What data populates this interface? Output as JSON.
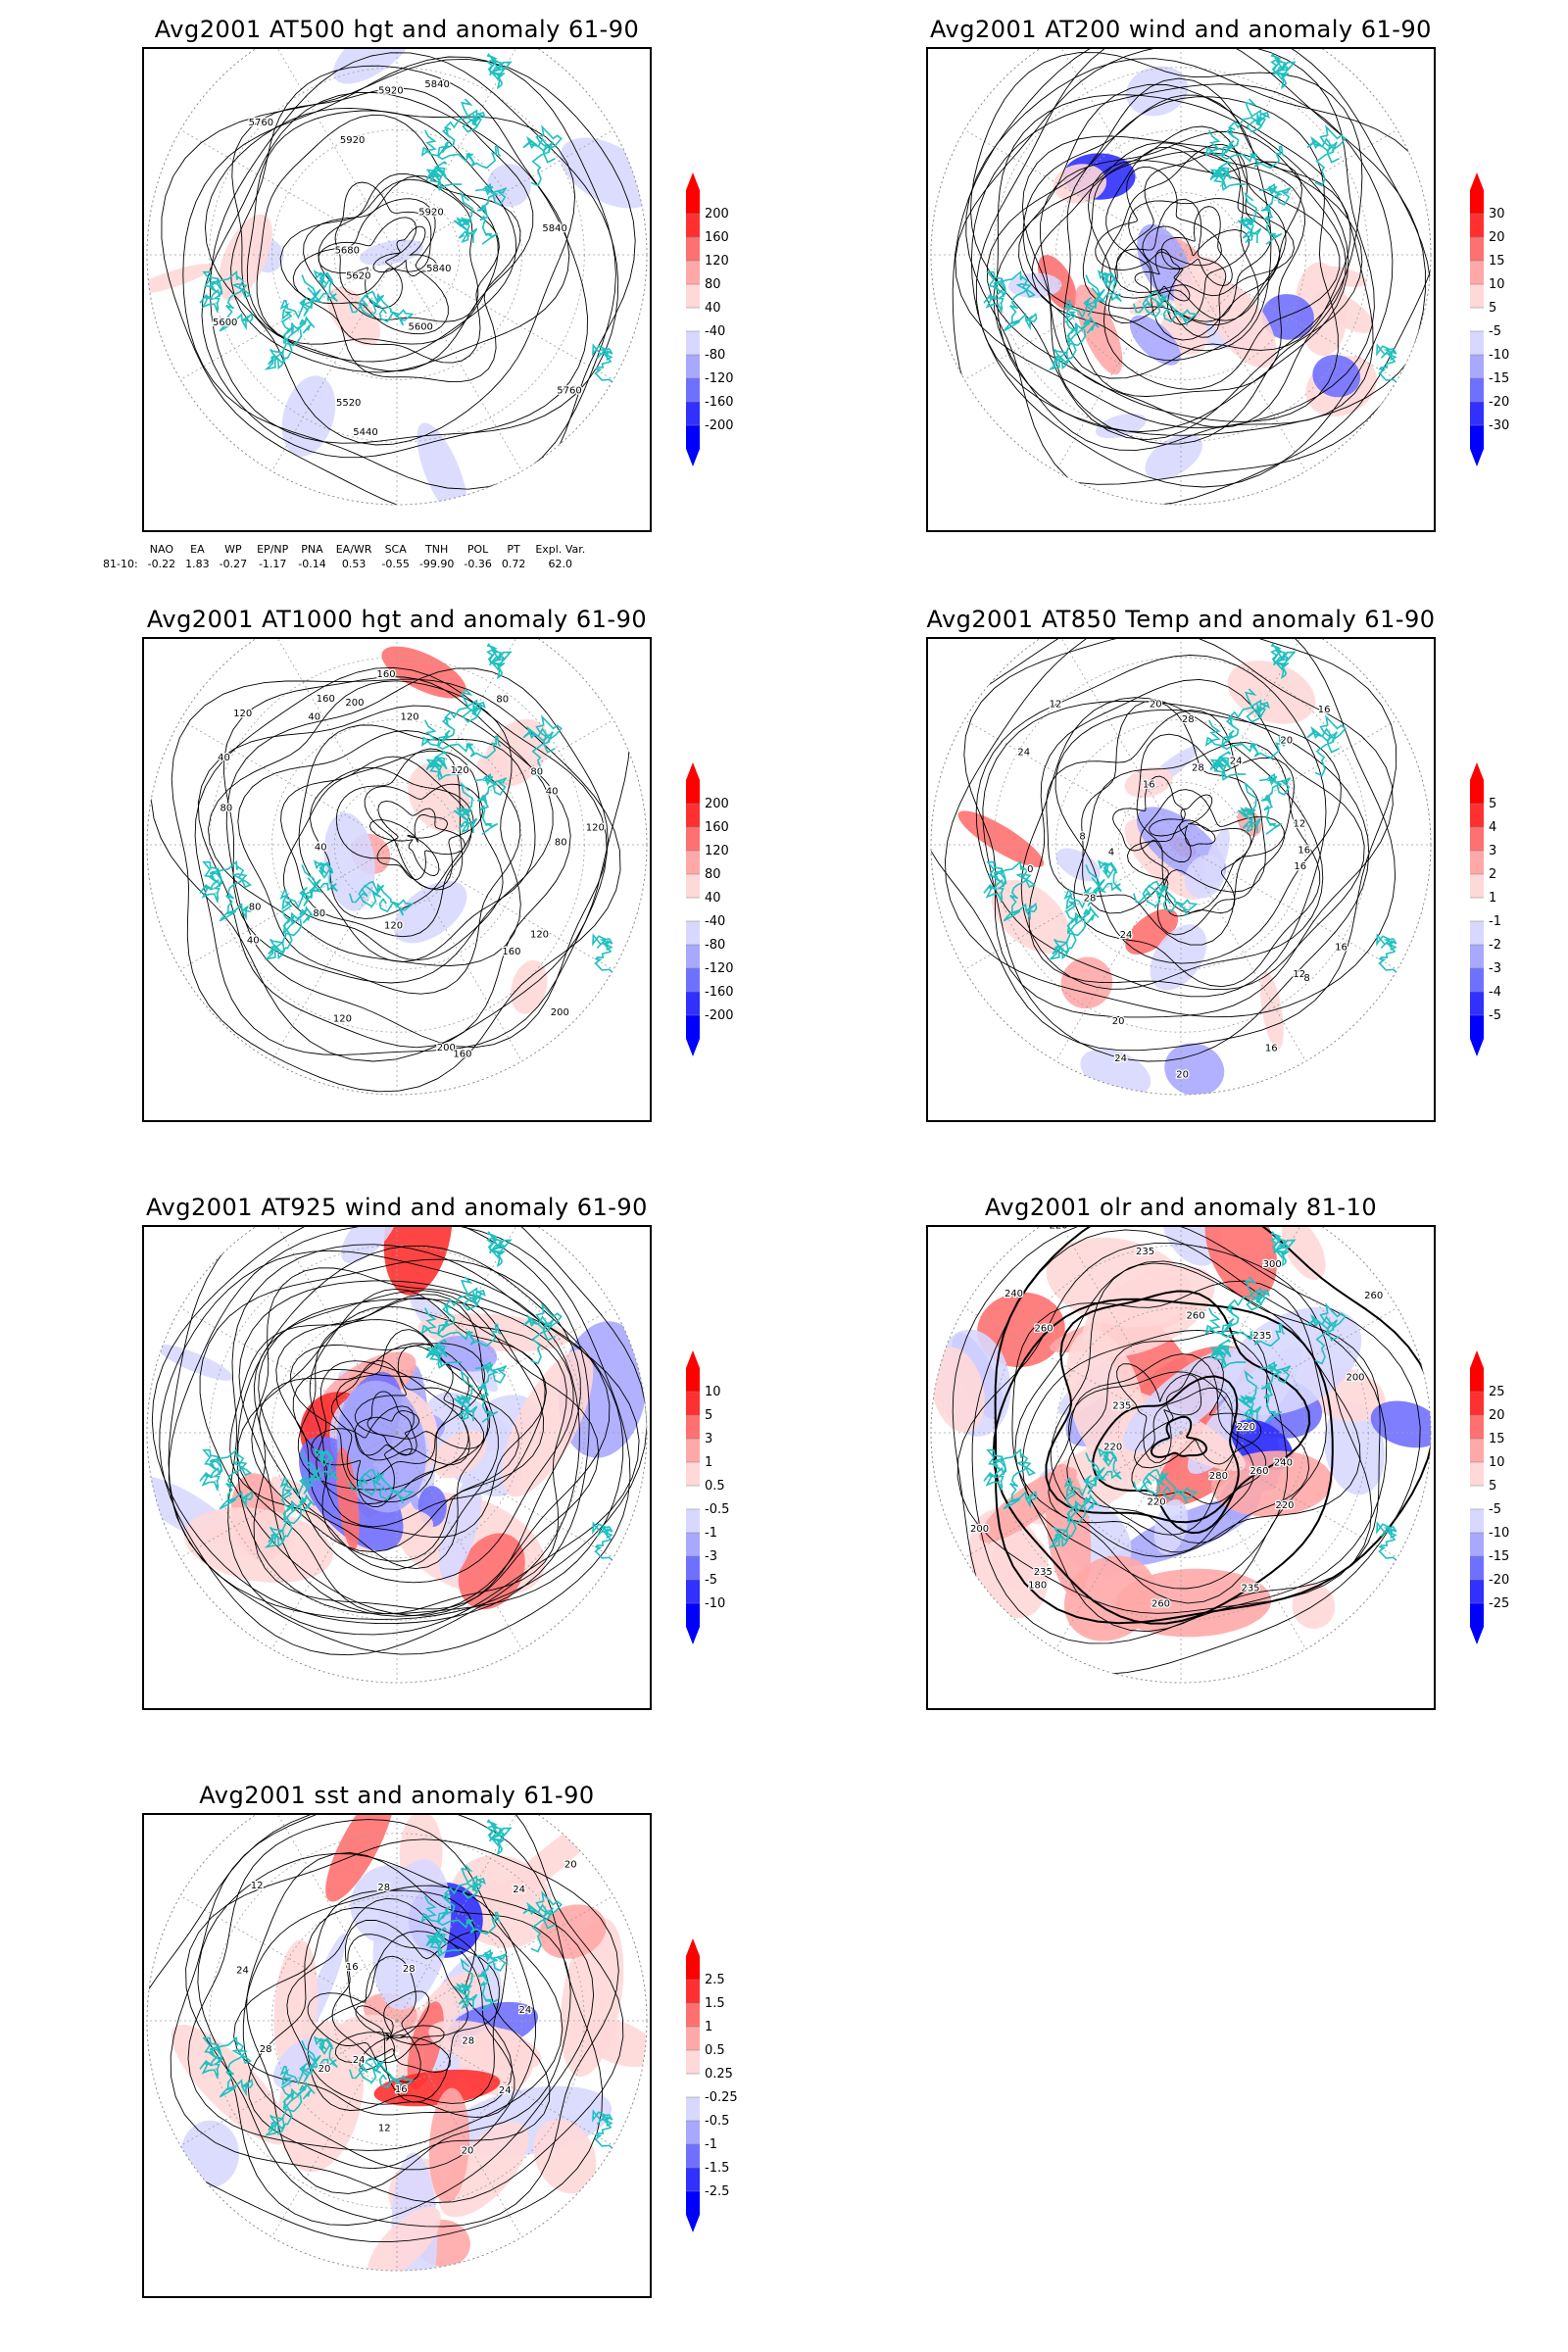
{
  "panels": [
    {
      "id": "p1",
      "title": "Avg2001 AT500 hgt and anomaly 61-90",
      "field": "hgt",
      "contour_labels": [
        "5840",
        "5760",
        "5600",
        "5440",
        "5520",
        "5620",
        "5600",
        "5680",
        "5760",
        "5920",
        "5920",
        "5840",
        "5920",
        "5840"
      ],
      "colorbar": [
        "200",
        "160",
        "120",
        "80",
        "40",
        "-40",
        "-80",
        "-120",
        "-160",
        "-200"
      ]
    },
    {
      "id": "p2",
      "title": "Avg2001 AT200 wind and anomaly 61-90",
      "field": "wind",
      "contour_labels": [],
      "colorbar": [
        "30",
        "20",
        "15",
        "10",
        "5",
        "-5",
        "-10",
        "-15",
        "-20",
        "-30"
      ]
    },
    {
      "id": "p3",
      "title": "Avg2001 AT1000 hgt and anomaly 61-90",
      "field": "hgt",
      "contour_labels": [
        "80",
        "120",
        "160",
        "200",
        "200",
        "160",
        "120",
        "120",
        "80",
        "40",
        "80",
        "40",
        "80",
        "40",
        "120",
        "40",
        "160",
        "200",
        "160",
        "120",
        "80",
        "120",
        "80",
        "40",
        "120"
      ],
      "colorbar": [
        "200",
        "160",
        "120",
        "80",
        "40",
        "-40",
        "-80",
        "-120",
        "-160",
        "-200"
      ]
    },
    {
      "id": "p4",
      "title": "Avg2001 AT850 Temp and anomaly 61-90",
      "field": "temp",
      "contour_labels": [
        "16",
        "16",
        "12",
        "8",
        "16",
        "20",
        "24",
        "20",
        "24",
        "28",
        "0",
        "4",
        "8",
        "24",
        "12",
        "16",
        "20",
        "28",
        "28",
        "24",
        "20",
        "16",
        "12",
        "16"
      ],
      "colorbar": [
        "5",
        "4",
        "3",
        "2",
        "1",
        "-1",
        "-2",
        "-3",
        "-4",
        "-5"
      ]
    },
    {
      "id": "p5",
      "title": "Avg2001 AT925 wind and anomaly 61-90",
      "field": "wind",
      "contour_labels": [],
      "colorbar": [
        "10",
        "5",
        "3",
        "1",
        "0.5",
        "-0.5",
        "-1",
        "-3",
        "-5",
        "-10"
      ]
    },
    {
      "id": "p6",
      "title": "Avg2001 olr and anomaly 81-10",
      "field": "olr",
      "contour_labels": [
        "240",
        "260",
        "220",
        "280",
        "235",
        "260",
        "220",
        "180",
        "235",
        "200",
        "220",
        "235",
        "260",
        "240",
        "220",
        "235",
        "260",
        "300",
        "235",
        "260",
        "200",
        "220"
      ],
      "colorbar": [
        "25",
        "20",
        "15",
        "10",
        "5",
        "-5",
        "-10",
        "-15",
        "-20",
        "-25"
      ]
    },
    {
      "id": "p7",
      "title": "Avg2001 sst and anomaly 61-90",
      "field": "sst",
      "contour_labels": [
        "28",
        "24",
        "20",
        "16",
        "12",
        "24",
        "20",
        "28",
        "24",
        "12",
        "16",
        "28",
        "28",
        "24",
        "20",
        "24"
      ],
      "colorbar": [
        "2.5",
        "1.5",
        "1",
        "0.5",
        "0.25",
        "-0.25",
        "-0.5",
        "-1",
        "-1.5",
        "-2.5"
      ]
    }
  ],
  "indices": {
    "headers": [
      "NAO",
      "EA",
      "WP",
      "EP/NP",
      "PNA",
      "EA/WR",
      "SCA",
      "TNH",
      "POL",
      "PT",
      "Expl. Var."
    ],
    "row_label": "81-10:",
    "values": [
      "-0.22",
      "1.83",
      "-0.27",
      "-1.17",
      "-0.14",
      "0.53",
      "-0.55",
      "-99.90",
      "-0.36",
      "0.72",
      "62.0"
    ]
  },
  "colors": {
    "coast": "#20c0c0",
    "contour": "#000000",
    "grid": "#a0a0a0",
    "ramp_warm": [
      "#ff0000",
      "#ff3030",
      "#ff7070",
      "#ffa8a8",
      "#ffd8d8"
    ],
    "ramp_cold": [
      "#d8d8ff",
      "#a8a8ff",
      "#7070ff",
      "#3030ff",
      "#0000ff"
    ]
  }
}
